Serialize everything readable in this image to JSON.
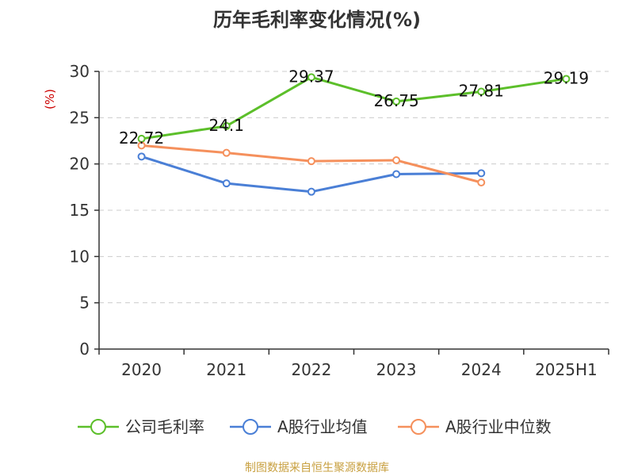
{
  "chart_data": {
    "type": "line",
    "title": "历年毛利率变化情况(%)",
    "ylabel": "(%)",
    "xlabel": "",
    "categories": [
      "2020",
      "2021",
      "2022",
      "2023",
      "2024",
      "2025H1"
    ],
    "ylim": [
      0,
      30
    ],
    "yticks": [
      0,
      5,
      10,
      15,
      20,
      25,
      30
    ],
    "grid": true,
    "legend_position": "bottom",
    "series": [
      {
        "name": "公司毛利率",
        "color": "#5cbf2a",
        "values": [
          22.72,
          24.1,
          29.37,
          26.75,
          27.81,
          29.19
        ],
        "labels": [
          "22.72",
          "24.1",
          "29.37",
          "26.75",
          "27.81",
          "29.19"
        ]
      },
      {
        "name": "A股行业均值",
        "color": "#4a7fd6",
        "values": [
          20.8,
          17.9,
          17.0,
          18.9,
          19.0,
          null
        ]
      },
      {
        "name": "A股行业中位数",
        "color": "#f5905c",
        "values": [
          22.0,
          21.2,
          20.3,
          20.4,
          18.0,
          null
        ]
      }
    ],
    "source": "制图数据来自恒生聚源数据库"
  }
}
